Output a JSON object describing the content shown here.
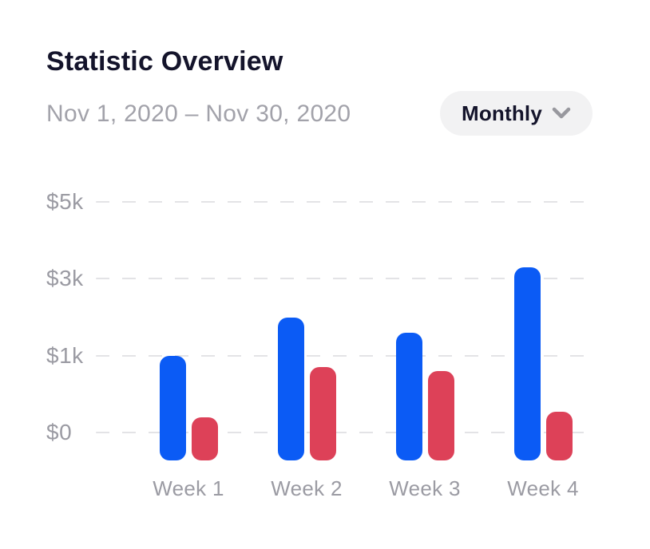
{
  "header": {
    "title": "Statistic Overview",
    "date_range": "Nov 1, 2020 – Nov 30, 2020",
    "period_selector": {
      "label": "Monthly",
      "icon": "chevron-down-icon"
    }
  },
  "colors": {
    "title_text": "#14142B",
    "muted_text": "#A2A2AA",
    "axis_text": "#9B9BA3",
    "gridline": "#E3E3E6",
    "pill_bg": "#F2F2F3",
    "chevron": "#98989E",
    "bar_blue": "#0B5BF5",
    "bar_red": "#DD4158"
  },
  "chart_data": {
    "type": "bar",
    "title": "Statistic Overview",
    "categories": [
      "Week 1",
      "Week 2",
      "Week 3",
      "Week 4"
    ],
    "series": [
      {
        "name": "blue-series",
        "color": "#0B5BF5",
        "values": [
          1000,
          2000,
          1600,
          3300
        ]
      },
      {
        "name": "red-series",
        "color": "#DD4158",
        "values": [
          200,
          850,
          800,
          270
        ]
      }
    ],
    "xlabel": "",
    "ylabel": "",
    "y_ticks": [
      "$0",
      "$1k",
      "$3k",
      "$5k"
    ],
    "y_tick_values": [
      0,
      1000,
      3000,
      5000
    ],
    "ylim": [
      0,
      5000
    ],
    "y_axis_note": "non-linear axis: ticks 0, 1k, 3k, 5k are equally spaced",
    "grid": "horizontal dashed",
    "legend_position": "none"
  }
}
